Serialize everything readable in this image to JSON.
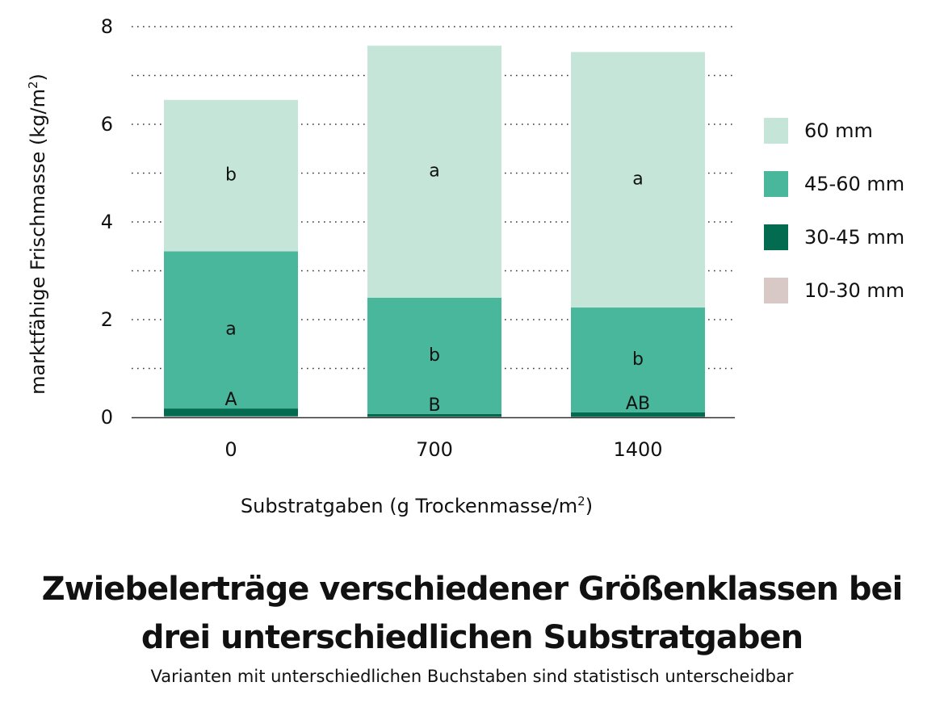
{
  "chart_data": {
    "type": "bar",
    "stacked": true,
    "title": "Zwiebelerträge verschiedener Größenklassen bei drei unterschiedlichen Substratgaben",
    "subtitle": "Varianten mit unterschiedlichen Buchstaben sind statistisch unterscheidbar",
    "xlabel": "Substratgaben (g Trockenmasse/m²)",
    "xlabel_main": "Substratgaben (g Trockenmasse/m",
    "xlabel_sup": "2",
    "xlabel_end": ")",
    "ylabel": "marktfähige Frischmasse (kg/m²)",
    "ylabel_main": "marktfähige Frischmasse (kg/m",
    "ylabel_sup": "2",
    "ylabel_end": ")",
    "categories": [
      "0",
      "700",
      "1400"
    ],
    "ylim": [
      0,
      8
    ],
    "yticks": [
      0,
      2,
      4,
      6,
      8
    ],
    "grid": true,
    "legend_position": "right",
    "series": [
      {
        "name": "10-30 mm",
        "values": [
          0.02,
          0.01,
          0.01
        ],
        "color": "#d8c8c6"
      },
      {
        "name": "30-45 mm",
        "values": [
          0.16,
          0.06,
          0.09
        ],
        "color": "#036b50"
      },
      {
        "name": "45-60 mm",
        "values": [
          3.22,
          2.38,
          2.15
        ],
        "color": "#49b79c"
      },
      {
        "name": "60 mm",
        "values": [
          3.1,
          5.16,
          5.23
        ],
        "color": "#c4e5d8"
      }
    ],
    "annotations": [
      {
        "category": "0",
        "series": "60 mm",
        "text": "b"
      },
      {
        "category": "0",
        "series": "45-60 mm",
        "text": "a"
      },
      {
        "category": "0",
        "series": "30-45 mm",
        "text": "A"
      },
      {
        "category": "700",
        "series": "60 mm",
        "text": "a"
      },
      {
        "category": "700",
        "series": "45-60 mm",
        "text": "b"
      },
      {
        "category": "700",
        "series": "30-45 mm",
        "text": "B"
      },
      {
        "category": "1400",
        "series": "60 mm",
        "text": "a"
      },
      {
        "category": "1400",
        "series": "45-60 mm",
        "text": "b"
      },
      {
        "category": "1400",
        "series": "30-45 mm",
        "text": "AB"
      }
    ],
    "legend_order": [
      "60 mm",
      "45-60 mm",
      "30-45 mm",
      "10-30 mm"
    ]
  }
}
